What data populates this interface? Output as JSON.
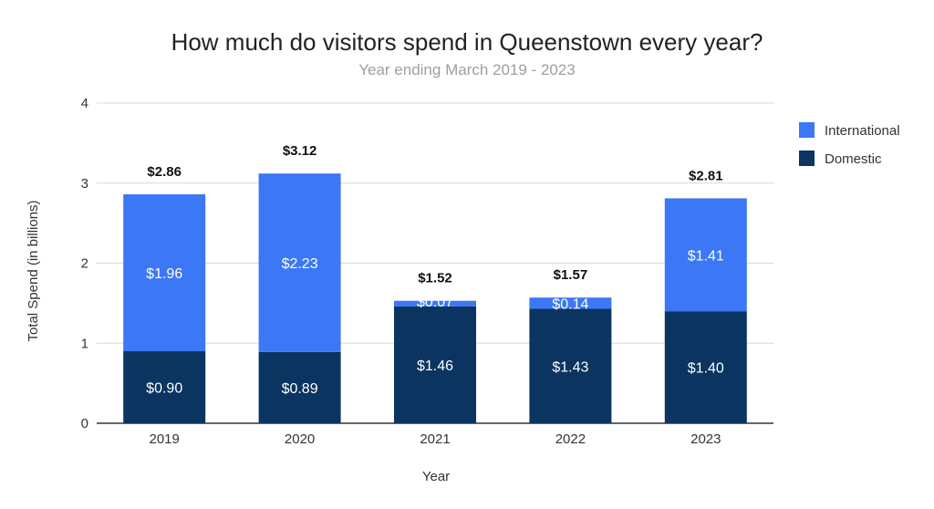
{
  "chart_data": {
    "type": "bar",
    "stacked": true,
    "title": "How much do visitors spend in Queenstown every year?",
    "subtitle": "Year ending March 2019 - 2023",
    "xlabel": "Year",
    "ylabel": "Total Spend (in billions)",
    "ylim": [
      0,
      4
    ],
    "yticks": [
      0,
      1,
      2,
      3,
      4
    ],
    "grid": true,
    "legend_position": "right",
    "categories": [
      "2019",
      "2020",
      "2021",
      "2022",
      "2023"
    ],
    "series": [
      {
        "name": "Domestic",
        "color": "#0b3560",
        "values": [
          0.9,
          0.89,
          1.46,
          1.43,
          1.4
        ],
        "labels": [
          "$0.90",
          "$0.89",
          "$1.46",
          "$1.43",
          "$1.40"
        ]
      },
      {
        "name": "International",
        "color": "#3c78f5",
        "values": [
          1.96,
          2.23,
          0.07,
          0.14,
          1.41
        ],
        "labels": [
          "$1.96",
          "$2.23",
          "$0.07",
          "$0.14",
          "$1.41"
        ]
      }
    ],
    "totals": [
      2.86,
      3.12,
      1.52,
      1.57,
      2.81
    ],
    "total_labels": [
      "$2.86",
      "$3.12",
      "$1.52",
      "$1.57",
      "$2.81"
    ],
    "legend": [
      "International",
      "Domestic"
    ]
  }
}
